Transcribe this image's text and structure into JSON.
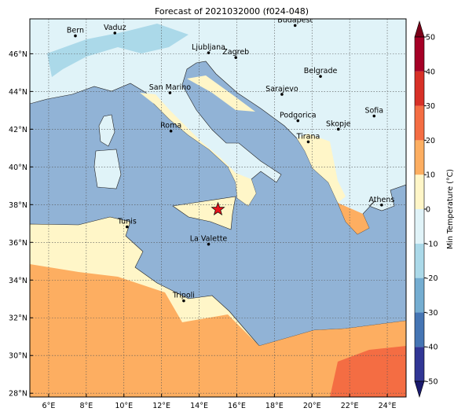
{
  "map": {
    "title": "Forecast of 2021032000 (f024-048)",
    "lon_range": [
      5,
      25
    ],
    "lat_range": [
      27.8,
      47.85
    ],
    "lon_ticks": [
      {
        "value": 6,
        "label": "6°E"
      },
      {
        "value": 8,
        "label": "8°E"
      },
      {
        "value": 10,
        "label": "10°E"
      },
      {
        "value": 12,
        "label": "12°E"
      },
      {
        "value": 14,
        "label": "14°E"
      },
      {
        "value": 16,
        "label": "16°E"
      },
      {
        "value": 18,
        "label": "18°E"
      },
      {
        "value": 20,
        "label": "20°E"
      },
      {
        "value": 22,
        "label": "22°E"
      },
      {
        "value": 24,
        "label": "24°E"
      }
    ],
    "lat_ticks": [
      {
        "value": 28,
        "label": "28°N"
      },
      {
        "value": 30,
        "label": "30°N"
      },
      {
        "value": 32,
        "label": "32°N"
      },
      {
        "value": 34,
        "label": "34°N"
      },
      {
        "value": 36,
        "label": "36°N"
      },
      {
        "value": 38,
        "label": "38°N"
      },
      {
        "value": 40,
        "label": "40°N"
      },
      {
        "value": 42,
        "label": "42°N"
      },
      {
        "value": 44,
        "label": "44°N"
      },
      {
        "value": 46,
        "label": "46°N"
      }
    ],
    "grid": true,
    "cities": [
      {
        "name": "Bern",
        "lon": 7.42,
        "lat": 46.95
      },
      {
        "name": "Vaduz",
        "lon": 9.52,
        "lat": 47.1
      },
      {
        "name": "Ljubljana",
        "lon": 14.5,
        "lat": 46.05
      },
      {
        "name": "Zagreb",
        "lon": 15.95,
        "lat": 45.8
      },
      {
        "name": "Budapest",
        "lon": 19.1,
        "lat": 47.5
      },
      {
        "name": "Belgrade",
        "lon": 20.45,
        "lat": 44.8
      },
      {
        "name": "Sarajevo",
        "lon": 18.4,
        "lat": 43.85
      },
      {
        "name": "San Marino",
        "lon": 12.45,
        "lat": 43.93
      },
      {
        "name": "Sofia",
        "lon": 23.3,
        "lat": 42.7
      },
      {
        "name": "Podgorica",
        "lon": 19.25,
        "lat": 42.45
      },
      {
        "name": "Skopje",
        "lon": 21.4,
        "lat": 42.0
      },
      {
        "name": "Roma",
        "lon": 12.5,
        "lat": 41.9
      },
      {
        "name": "Tirana",
        "lon": 19.8,
        "lat": 41.33
      },
      {
        "name": "Athens",
        "lon": 23.7,
        "lat": 37.98
      },
      {
        "name": "Tunis",
        "lon": 10.17,
        "lat": 36.82
      },
      {
        "name": "La Valette",
        "lon": 14.5,
        "lat": 35.9
      },
      {
        "name": "Tripoli",
        "lon": 13.18,
        "lat": 32.9
      }
    ],
    "star": {
      "lon": 15.0,
      "lat": 37.75,
      "color": "#e8141c"
    },
    "colorbar": {
      "label": "Min Temperature (°C)",
      "ticks": [
        -50,
        -40,
        -30,
        -20,
        -10,
        0,
        10,
        20,
        30,
        40,
        50
      ],
      "colors": [
        "#313695",
        "#4575b4",
        "#74add1",
        "#abd9e9",
        "#e0f3f8",
        "#fff6c8",
        "#fdae61",
        "#f46d43",
        "#d73027",
        "#a50026"
      ],
      "under_color": "#1a1a6e",
      "over_color": "#7a0018"
    }
  }
}
